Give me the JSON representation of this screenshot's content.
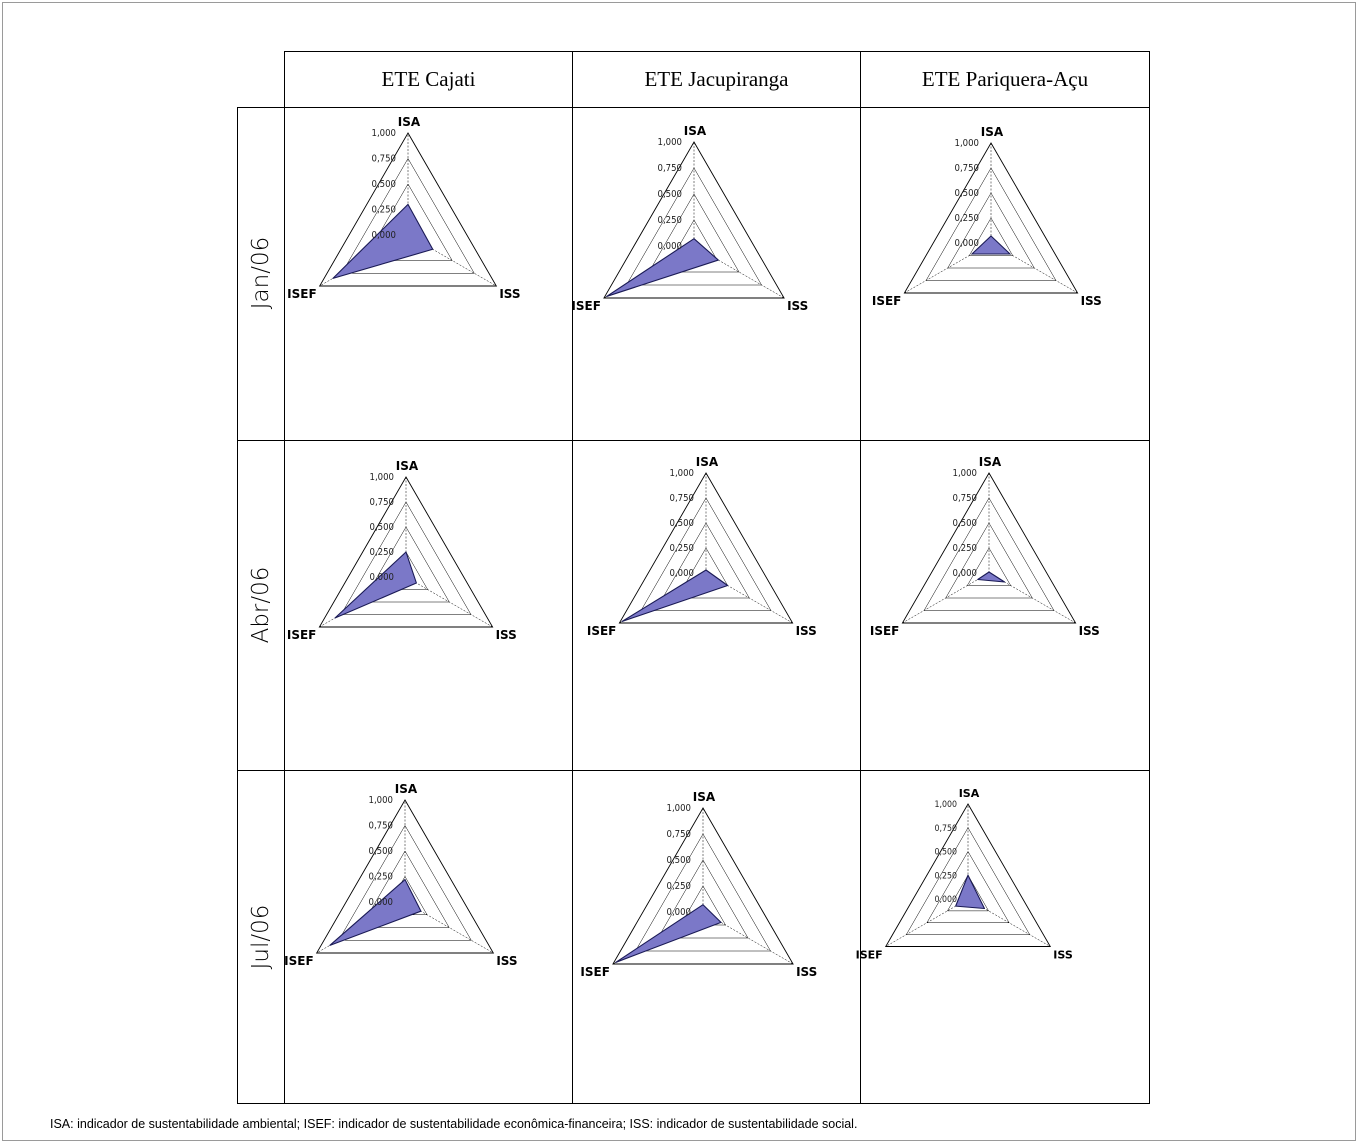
{
  "columns": [
    "ETE Cajati",
    "ETE Jacupiranga",
    "ETE Pariquera-Açu"
  ],
  "rows": [
    "Jan/06",
    "Abr/06",
    "Jul/06"
  ],
  "caption": "ISA: indicador de sustentabilidade ambiental; ISEF: indicador de sustentabilidade econômica-financeira; ISS: indicador de sustentabilidade social.",
  "colors": {
    "fill": "#7b78c8",
    "stroke": "#1a1a55",
    "grid": "#000000"
  },
  "chart_data": [
    {
      "type": "radar",
      "row": "Jan/06",
      "column": "ETE Cajati",
      "axes": [
        "ISA",
        "ISS",
        "ISEF"
      ],
      "ticks": [
        "0,000",
        "0,250",
        "0,500",
        "0,750",
        "1,000"
      ],
      "range": [
        0,
        1
      ],
      "values": {
        "ISA": 0.3,
        "ISS": 0.28,
        "ISEF": 0.85
      }
    },
    {
      "type": "radar",
      "row": "Jan/06",
      "column": "ETE Jacupiranga",
      "axes": [
        "ISA",
        "ISS",
        "ISEF"
      ],
      "ticks": [
        "0,000",
        "0,250",
        "0,500",
        "0,750",
        "1,000"
      ],
      "range": [
        0,
        1
      ],
      "values": {
        "ISA": 0.07,
        "ISS": 0.27,
        "ISEF": 0.97
      }
    },
    {
      "type": "radar",
      "row": "Jan/06",
      "column": "ETE Pariquera-Açu",
      "axes": [
        "ISA",
        "ISS",
        "ISEF"
      ],
      "ticks": [
        "0,000",
        "0,250",
        "0,500",
        "0,750",
        "1,000"
      ],
      "range": [
        0,
        1
      ],
      "values": {
        "ISA": 0.07,
        "ISS": 0.22,
        "ISEF": 0.22
      }
    },
    {
      "type": "radar",
      "row": "Abr/06",
      "column": "ETE Cajati",
      "axes": [
        "ISA",
        "ISS",
        "ISEF"
      ],
      "ticks": [
        "0,000",
        "0,250",
        "0,500",
        "0,750",
        "1,000"
      ],
      "range": [
        0,
        1
      ],
      "values": {
        "ISA": 0.25,
        "ISS": 0.12,
        "ISEF": 0.82
      }
    },
    {
      "type": "radar",
      "row": "Abr/06",
      "column": "ETE Jacupiranga",
      "axes": [
        "ISA",
        "ISS",
        "ISEF"
      ],
      "ticks": [
        "0,000",
        "0,250",
        "0,500",
        "0,750",
        "1,000"
      ],
      "range": [
        0,
        1
      ],
      "values": {
        "ISA": 0.03,
        "ISS": 0.25,
        "ISEF": 0.97
      }
    },
    {
      "type": "radar",
      "row": "Abr/06",
      "column": "ETE Pariquera-Açu",
      "axes": [
        "ISA",
        "ISS",
        "ISEF"
      ],
      "ticks": [
        "0,000",
        "0,250",
        "0,500",
        "0,750",
        "1,000"
      ],
      "range": [
        0,
        1
      ],
      "values": {
        "ISA": 0.01,
        "ISS": 0.18,
        "ISEF": 0.13
      }
    },
    {
      "type": "radar",
      "row": "Jul/06",
      "column": "ETE Cajati",
      "axes": [
        "ISA",
        "ISS",
        "ISEF"
      ],
      "ticks": [
        "0,000",
        "0,250",
        "0,500",
        "0,750",
        "1,000"
      ],
      "range": [
        0,
        1
      ],
      "values": {
        "ISA": 0.22,
        "ISS": 0.18,
        "ISEF": 0.85
      }
    },
    {
      "type": "radar",
      "row": "Jul/06",
      "column": "ETE Jacupiranga",
      "axes": [
        "ISA",
        "ISS",
        "ISEF"
      ],
      "ticks": [
        "0,000",
        "0,250",
        "0,500",
        "0,750",
        "1,000"
      ],
      "range": [
        0,
        1
      ],
      "values": {
        "ISA": 0.07,
        "ISS": 0.2,
        "ISEF": 0.97
      }
    },
    {
      "type": "radar",
      "row": "Jul/06",
      "column": "ETE Pariquera-Açu",
      "axes": [
        "ISA",
        "ISS",
        "ISEF"
      ],
      "ticks": [
        "0,000",
        "0,250",
        "0,500",
        "0,750",
        "1,000"
      ],
      "range": [
        0,
        1
      ],
      "values": {
        "ISA": 0.25,
        "ISS": 0.2,
        "ISEF": 0.15
      }
    }
  ]
}
